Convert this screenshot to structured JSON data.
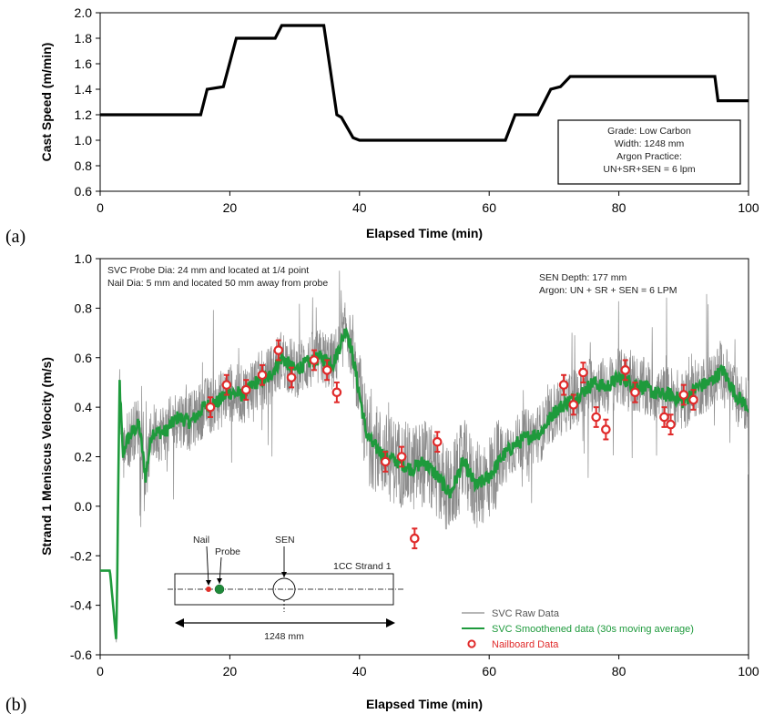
{
  "colors": {
    "raw": "#8a8a8a",
    "smooth": "#1e9a3c",
    "nailboard": "#e02a2a",
    "nail_dot": "#e0302a",
    "probe_dot": "#1f8a3a",
    "legend_text_green": "#1e9a3c",
    "legend_text_red": "#e02a2a"
  },
  "chart_data": [
    {
      "type": "line",
      "panel_label": "(a)",
      "xlabel": "Elapsed Time (min)",
      "ylabel": "Cast Speed (m/min)",
      "xlim": [
        0,
        100
      ],
      "ylim": [
        0.6,
        2.0
      ],
      "x_ticks": [
        "0",
        "20",
        "40",
        "60",
        "80",
        "100"
      ],
      "y_ticks": [
        "0.6",
        "0.8",
        "1.0",
        "1.2",
        "1.4",
        "1.6",
        "1.8",
        "2.0"
      ],
      "grid": false,
      "series": [
        {
          "x": [
            0,
            15.5,
            16.5,
            19,
            21,
            27,
            28,
            34.5,
            35.5,
            36.5,
            37.2,
            39,
            40,
            62.5,
            64,
            67.5,
            69.5,
            71,
            72.5,
            94.8,
            95.3,
            100
          ],
          "values": [
            1.2,
            1.2,
            1.4,
            1.42,
            1.8,
            1.8,
            1.9,
            1.9,
            1.55,
            1.2,
            1.18,
            1.02,
            1.0,
            1.0,
            1.2,
            1.2,
            1.4,
            1.42,
            1.5,
            1.5,
            1.31,
            1.31
          ]
        }
      ],
      "annotation": {
        "lines": [
          "Grade: Low Carbon",
          "Width: 1248 mm",
          "Argon Practice:",
          "UN+SR+SEN = 6 lpm"
        ],
        "placement": "bottom-right"
      }
    },
    {
      "type": "line",
      "panel_label": "(b)",
      "xlabel": "Elapsed Time (min)",
      "ylabel": "Strand 1 Meniscus Velocity (m/s)",
      "xlim": [
        0,
        100
      ],
      "ylim": [
        -0.6,
        1.0
      ],
      "x_ticks": [
        "0",
        "20",
        "40",
        "60",
        "80",
        "100"
      ],
      "y_ticks": [
        "-0.6",
        "-0.4",
        "-0.2",
        "0.0",
        "0.2",
        "0.4",
        "0.6",
        "0.8",
        "1.0"
      ],
      "grid": false,
      "annotations": {
        "top_left": [
          "SVC Probe Dia: 24 mm and located at 1/4 point",
          "Nail Dia: 5 mm and located 50 mm away from probe"
        ],
        "top_right": [
          "SEN Depth: 177 mm",
          "Argon: UN + SR + SEN = 6 LPM"
        ]
      },
      "legend": {
        "placement": "bottom-right",
        "entries": [
          "SVC Raw Data",
          "SVC Smoothened data (30s moving average)",
          "Nailboard Data"
        ]
      },
      "smoothed_series": {
        "x": [
          0,
          1.5,
          2.0,
          2.5,
          3.0,
          3.5,
          4,
          5,
          6,
          7,
          8,
          10,
          12,
          14,
          16,
          18,
          20,
          22,
          24,
          26,
          28,
          30,
          32,
          34,
          36,
          37,
          38,
          39,
          40,
          41,
          42,
          44,
          46,
          48,
          50,
          52,
          54,
          56,
          58,
          60,
          62,
          64,
          66,
          68,
          70,
          72,
          74,
          76,
          78,
          80,
          82,
          84,
          86,
          88,
          90,
          92,
          94,
          96,
          98,
          100
        ],
        "values": [
          -0.26,
          -0.26,
          -0.4,
          -0.55,
          0.5,
          0.2,
          0.26,
          0.3,
          0.33,
          0.12,
          0.3,
          0.3,
          0.36,
          0.34,
          0.4,
          0.42,
          0.46,
          0.45,
          0.5,
          0.52,
          0.6,
          0.55,
          0.58,
          0.6,
          0.58,
          0.65,
          0.72,
          0.6,
          0.45,
          0.3,
          0.25,
          0.2,
          0.18,
          0.15,
          0.18,
          0.12,
          0.05,
          0.18,
          0.08,
          0.12,
          0.2,
          0.25,
          0.28,
          0.3,
          0.38,
          0.42,
          0.45,
          0.5,
          0.48,
          0.52,
          0.5,
          0.48,
          0.45,
          0.45,
          0.42,
          0.48,
          0.5,
          0.55,
          0.45,
          0.4
        ]
      },
      "nailboard_data": {
        "x": [
          17,
          19.5,
          22.5,
          25,
          27.5,
          29.5,
          33,
          35,
          36.5,
          44,
          46.5,
          48.5,
          52,
          71.5,
          73,
          74.5,
          76.5,
          78,
          81,
          82.5,
          87,
          88,
          90,
          91.5
        ],
        "values": [
          0.4,
          0.49,
          0.47,
          0.53,
          0.63,
          0.52,
          0.59,
          0.55,
          0.46,
          0.18,
          0.2,
          -0.13,
          0.26,
          0.49,
          0.41,
          0.54,
          0.36,
          0.31,
          0.55,
          0.46,
          0.36,
          0.33,
          0.45,
          0.43
        ],
        "error": 0.04
      },
      "inset_diagram": {
        "labels": {
          "nail": "Nail",
          "probe": "Probe",
          "sen": "SEN",
          "strand": "1CC Strand 1",
          "width": "1248 mm"
        }
      }
    }
  ]
}
